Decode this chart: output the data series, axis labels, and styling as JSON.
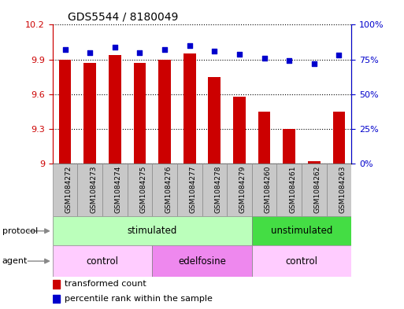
{
  "title": "GDS5544 / 8180049",
  "samples": [
    "GSM1084272",
    "GSM1084273",
    "GSM1084274",
    "GSM1084275",
    "GSM1084276",
    "GSM1084277",
    "GSM1084278",
    "GSM1084279",
    "GSM1084260",
    "GSM1084261",
    "GSM1084262",
    "GSM1084263"
  ],
  "transformed_count": [
    9.9,
    9.87,
    9.94,
    9.87,
    9.9,
    9.95,
    9.75,
    9.58,
    9.45,
    9.3,
    9.02,
    9.45
  ],
  "percentile_rank": [
    82,
    80,
    84,
    80,
    82,
    85,
    81,
    79,
    76,
    74,
    72,
    78
  ],
  "ylim_left": [
    9.0,
    10.2
  ],
  "ylim_right": [
    0,
    100
  ],
  "yticks_left": [
    9.0,
    9.3,
    9.6,
    9.9,
    10.2
  ],
  "ytick_labels_left": [
    "9",
    "9.3",
    "9.6",
    "9.9",
    "10.2"
  ],
  "yticks_right": [
    0,
    25,
    50,
    75,
    100
  ],
  "ytick_labels_right": [
    "0%",
    "25%",
    "50%",
    "75%",
    "100%"
  ],
  "bar_color": "#cc0000",
  "dot_color": "#0000cc",
  "bar_width": 0.5,
  "protocol_groups": [
    {
      "label": "stimulated",
      "start": 0,
      "end": 8,
      "color": "#bbffbb"
    },
    {
      "label": "unstimulated",
      "start": 8,
      "end": 12,
      "color": "#44dd44"
    }
  ],
  "agent_groups": [
    {
      "label": "control",
      "start": 0,
      "end": 4,
      "color": "#ffccff"
    },
    {
      "label": "edelfosine",
      "start": 4,
      "end": 8,
      "color": "#ee88ee"
    },
    {
      "label": "control",
      "start": 8,
      "end": 12,
      "color": "#ffccff"
    }
  ],
  "legend_bar_label": "transformed count",
  "legend_dot_label": "percentile rank within the sample",
  "left_axis_color": "#cc0000",
  "right_axis_color": "#0000cc",
  "protocol_label": "protocol",
  "agent_label": "agent",
  "col_bg_color": "#c8c8c8",
  "col_border_color": "#888888"
}
